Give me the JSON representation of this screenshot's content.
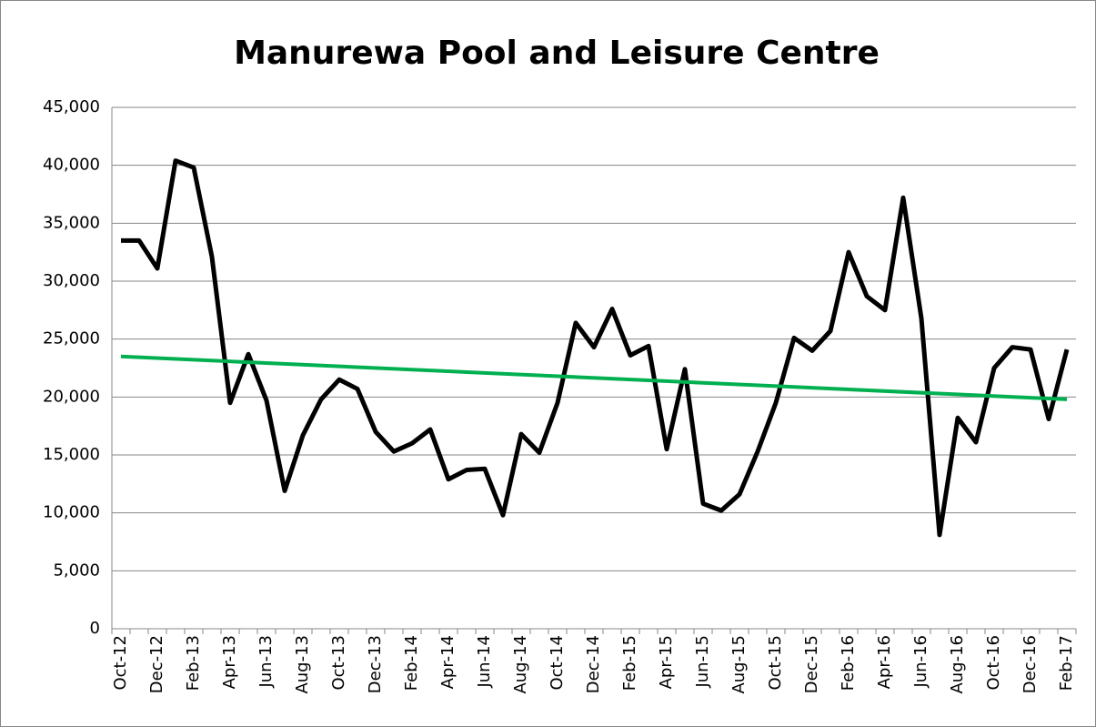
{
  "chart_data": {
    "type": "line",
    "title": "Manurewa Pool and Leisure Centre",
    "categories": [
      "Oct-12",
      null,
      "Dec-12",
      null,
      "Feb-13",
      null,
      "Apr-13",
      null,
      "Jun-13",
      null,
      "Aug-13",
      null,
      "Oct-13",
      null,
      "Dec-13",
      null,
      "Feb-14",
      null,
      "Apr-14",
      null,
      "Jun-14",
      null,
      "Aug-14",
      null,
      "Oct-14",
      null,
      "Dec-14",
      null,
      "Feb-15",
      null,
      "Apr-15",
      null,
      "Jun-15",
      null,
      "Aug-15",
      null,
      "Oct-15",
      null,
      "Dec-15",
      null,
      "Feb-16",
      null,
      "Apr-16",
      null,
      "Jun-16",
      null,
      "Aug-16",
      null,
      "Oct-16",
      null,
      "Dec-16",
      null,
      "Feb-17"
    ],
    "color": "#000000",
    "values": [
      33500,
      33500,
      31100,
      40400,
      39800,
      32100,
      19500,
      23700,
      19700,
      11900,
      16700,
      19800,
      21500,
      20700,
      17000,
      15300,
      16000,
      17200,
      12900,
      13700,
      13800,
      9800,
      16800,
      15200,
      19500,
      26400,
      24300,
      27600,
      23600,
      24400,
      15500,
      22400,
      10800,
      10200,
      11600,
      15300,
      19500,
      25100,
      24000,
      25700,
      32500,
      28700,
      27500,
      37200,
      26800,
      8100,
      18200,
      16100,
      22500,
      24300,
      24100,
      18100,
      24100
    ],
    "trendline": {
      "color": "#00b050",
      "values": [
        23500,
        19800
      ]
    },
    "ylim": [
      0,
      45000
    ],
    "yticks": [
      0,
      {
        "value": 5000,
        "label": "5,000"
      },
      {
        "value": 10000,
        "label": "10,000"
      },
      {
        "value": 15000,
        "label": "15,000"
      },
      {
        "value": 20000,
        "label": "20,000"
      },
      {
        "value": 25000,
        "label": "25,000"
      },
      {
        "value": 30000,
        "label": "30,000"
      },
      {
        "value": 35000,
        "label": "35,000"
      },
      {
        "value": 40000,
        "label": "40,000"
      },
      {
        "value": 45000,
        "label": "45,000"
      }
    ],
    "grid": true
  }
}
